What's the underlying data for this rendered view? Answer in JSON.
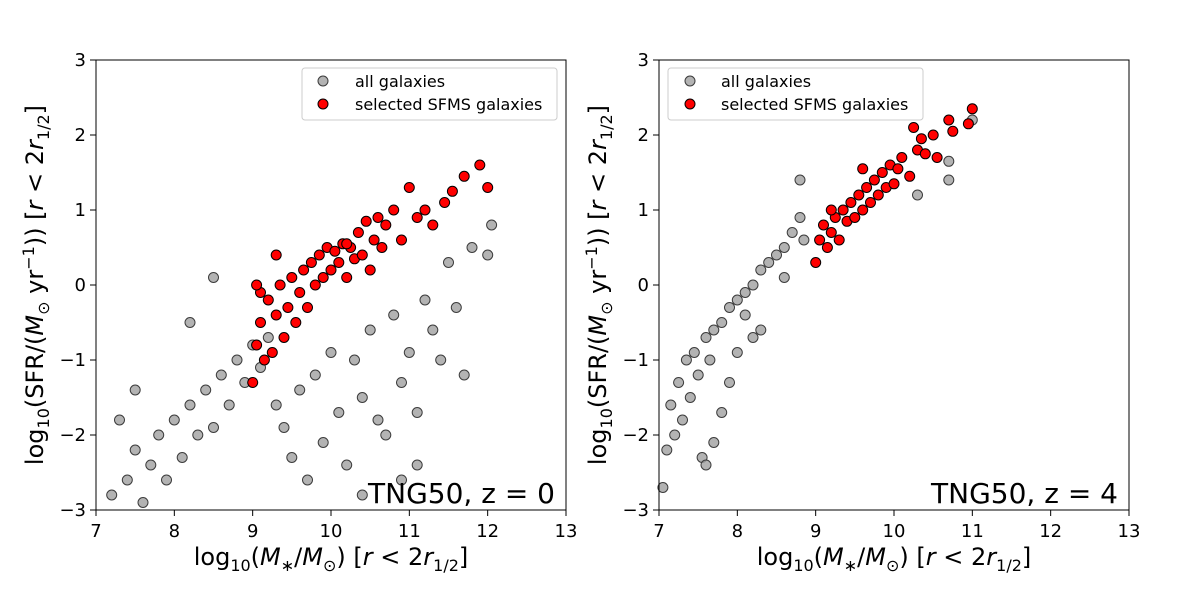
{
  "chart_data": [
    {
      "type": "scatter",
      "panel": "left",
      "xlabel": "log10(M*/M⊙) [r < 2r1/2]",
      "ylabel": "log10(SFR/(M⊙ yr−1)) [r < 2r1/2]",
      "xlim": [
        7,
        13
      ],
      "ylim": [
        -3,
        3
      ],
      "xticks": [
        "7",
        "8",
        "9",
        "10",
        "11",
        "12",
        "13"
      ],
      "yticks": [
        "−3",
        "−2",
        "−1",
        "0",
        "1",
        "2",
        "3"
      ],
      "annotation": "TNG50, z = 0",
      "legend": {
        "position": "top-right",
        "entries": [
          "all galaxies",
          "selected SFMS galaxies"
        ]
      },
      "series": [
        {
          "name": "all galaxies",
          "color": "#a0a0a0",
          "edge": "#3c3c3c",
          "points": [
            [
              7.2,
              -2.8
            ],
            [
              7.4,
              -2.6
            ],
            [
              7.5,
              -2.2
            ],
            [
              7.6,
              -2.9
            ],
            [
              7.7,
              -2.4
            ],
            [
              7.8,
              -2.0
            ],
            [
              7.9,
              -2.6
            ],
            [
              8.0,
              -1.8
            ],
            [
              8.1,
              -2.3
            ],
            [
              8.2,
              -1.6
            ],
            [
              8.3,
              -2.0
            ],
            [
              8.4,
              -1.4
            ],
            [
              8.5,
              -1.9
            ],
            [
              8.6,
              -1.2
            ],
            [
              8.7,
              -1.6
            ],
            [
              8.8,
              -1.0
            ],
            [
              8.9,
              -1.3
            ],
            [
              9.0,
              -0.8
            ],
            [
              9.1,
              -1.1
            ],
            [
              9.2,
              -0.7
            ],
            [
              9.3,
              -1.6
            ],
            [
              9.4,
              -1.9
            ],
            [
              9.5,
              -2.3
            ],
            [
              9.6,
              -1.4
            ],
            [
              9.7,
              -2.6
            ],
            [
              9.8,
              -1.2
            ],
            [
              9.9,
              -2.1
            ],
            [
              10.0,
              -0.9
            ],
            [
              10.1,
              -1.7
            ],
            [
              10.2,
              -2.4
            ],
            [
              10.3,
              -1.0
            ],
            [
              10.4,
              -1.5
            ],
            [
              10.5,
              -0.6
            ],
            [
              10.6,
              -1.8
            ],
            [
              10.7,
              -2.0
            ],
            [
              10.8,
              -0.4
            ],
            [
              10.9,
              -1.3
            ],
            [
              11.0,
              -0.9
            ],
            [
              11.1,
              -1.7
            ],
            [
              11.2,
              -0.2
            ],
            [
              11.3,
              -0.6
            ],
            [
              11.4,
              -1.0
            ],
            [
              11.5,
              0.3
            ],
            [
              11.6,
              -0.3
            ],
            [
              11.8,
              0.5
            ],
            [
              12.0,
              0.4
            ],
            [
              12.05,
              0.8
            ],
            [
              8.5,
              0.1
            ],
            [
              8.2,
              -0.5
            ],
            [
              7.5,
              -1.4
            ],
            [
              7.3,
              -1.8
            ],
            [
              11.7,
              -1.2
            ],
            [
              11.1,
              -2.4
            ],
            [
              10.9,
              -2.6
            ],
            [
              10.4,
              -2.8
            ]
          ]
        },
        {
          "name": "selected SFMS galaxies",
          "color": "#ff0000",
          "edge": "#000000",
          "points": [
            [
              9.0,
              -1.3
            ],
            [
              9.05,
              -0.8
            ],
            [
              9.1,
              -0.5
            ],
            [
              9.15,
              -1.0
            ],
            [
              9.2,
              -0.2
            ],
            [
              9.25,
              -0.9
            ],
            [
              9.3,
              -0.4
            ],
            [
              9.35,
              0.0
            ],
            [
              9.4,
              -0.7
            ],
            [
              9.45,
              -0.3
            ],
            [
              9.5,
              0.1
            ],
            [
              9.55,
              -0.5
            ],
            [
              9.6,
              -0.1
            ],
            [
              9.65,
              0.2
            ],
            [
              9.7,
              -0.3
            ],
            [
              9.75,
              0.3
            ],
            [
              9.8,
              0.0
            ],
            [
              9.85,
              0.4
            ],
            [
              9.9,
              0.1
            ],
            [
              9.95,
              0.5
            ],
            [
              10.0,
              0.2
            ],
            [
              10.05,
              0.45
            ],
            [
              10.1,
              0.3
            ],
            [
              10.15,
              0.55
            ],
            [
              10.2,
              0.1
            ],
            [
              10.25,
              0.5
            ],
            [
              10.3,
              0.35
            ],
            [
              10.35,
              0.7
            ],
            [
              10.4,
              0.4
            ],
            [
              10.45,
              0.85
            ],
            [
              10.5,
              0.2
            ],
            [
              10.55,
              0.6
            ],
            [
              10.6,
              0.9
            ],
            [
              10.65,
              0.5
            ],
            [
              10.7,
              0.8
            ],
            [
              10.8,
              1.0
            ],
            [
              10.9,
              0.6
            ],
            [
              11.0,
              1.3
            ],
            [
              11.1,
              0.9
            ],
            [
              11.2,
              1.0
            ],
            [
              11.3,
              0.8
            ],
            [
              11.45,
              1.1
            ],
            [
              11.55,
              1.25
            ],
            [
              11.7,
              1.45
            ],
            [
              11.9,
              1.6
            ],
            [
              12.0,
              1.3
            ],
            [
              9.3,
              0.4
            ],
            [
              10.2,
              0.55
            ],
            [
              9.1,
              -0.1
            ],
            [
              9.05,
              0.0
            ]
          ]
        }
      ]
    },
    {
      "type": "scatter",
      "panel": "right",
      "xlabel": "log10(M*/M⊙) [r < 2r1/2]",
      "ylabel": "log10(SFR/(M⊙ yr−1)) [r < 2r1/2]",
      "xlim": [
        7,
        13
      ],
      "ylim": [
        -3,
        3
      ],
      "xticks": [
        "7",
        "8",
        "9",
        "10",
        "11",
        "12",
        "13"
      ],
      "yticks": [
        "−3",
        "−2",
        "−1",
        "0",
        "1",
        "2",
        "3"
      ],
      "annotation": "TNG50, z = 4",
      "legend": {
        "position": "top-left",
        "entries": [
          "all galaxies",
          "selected SFMS galaxies"
        ]
      },
      "series": [
        {
          "name": "all galaxies",
          "color": "#a0a0a0",
          "edge": "#3c3c3c",
          "points": [
            [
              7.05,
              -2.7
            ],
            [
              7.1,
              -2.2
            ],
            [
              7.15,
              -1.6
            ],
            [
              7.2,
              -2.0
            ],
            [
              7.25,
              -1.3
            ],
            [
              7.3,
              -1.8
            ],
            [
              7.35,
              -1.0
            ],
            [
              7.4,
              -1.5
            ],
            [
              7.45,
              -0.9
            ],
            [
              7.5,
              -1.2
            ],
            [
              7.55,
              -2.3
            ],
            [
              7.6,
              -0.7
            ],
            [
              7.65,
              -1.0
            ],
            [
              7.7,
              -0.6
            ],
            [
              7.8,
              -0.5
            ],
            [
              7.9,
              -0.3
            ],
            [
              8.0,
              -0.2
            ],
            [
              8.1,
              -0.1
            ],
            [
              8.2,
              0.0
            ],
            [
              8.3,
              0.2
            ],
            [
              8.4,
              0.3
            ],
            [
              8.5,
              0.4
            ],
            [
              8.6,
              0.5
            ],
            [
              8.7,
              0.7
            ],
            [
              8.8,
              0.9
            ],
            [
              8.85,
              0.6
            ],
            [
              8.8,
              1.4
            ],
            [
              8.3,
              -0.6
            ],
            [
              8.0,
              -0.9
            ],
            [
              7.8,
              -1.7
            ],
            [
              7.7,
              -2.1
            ],
            [
              7.6,
              -2.4
            ],
            [
              7.9,
              -1.3
            ],
            [
              8.1,
              -0.4
            ],
            [
              8.2,
              -0.7
            ],
            [
              8.6,
              0.1
            ],
            [
              10.7,
              1.4
            ],
            [
              10.7,
              1.65
            ],
            [
              11.0,
              2.2
            ],
            [
              10.3,
              1.2
            ]
          ]
        },
        {
          "name": "selected SFMS galaxies",
          "color": "#ff0000",
          "edge": "#000000",
          "points": [
            [
              9.0,
              0.3
            ],
            [
              9.05,
              0.6
            ],
            [
              9.1,
              0.8
            ],
            [
              9.15,
              0.5
            ],
            [
              9.2,
              0.7
            ],
            [
              9.25,
              0.9
            ],
            [
              9.3,
              0.6
            ],
            [
              9.35,
              1.0
            ],
            [
              9.4,
              0.85
            ],
            [
              9.45,
              1.1
            ],
            [
              9.5,
              0.9
            ],
            [
              9.55,
              1.2
            ],
            [
              9.6,
              1.0
            ],
            [
              9.65,
              1.3
            ],
            [
              9.7,
              1.1
            ],
            [
              9.75,
              1.4
            ],
            [
              9.8,
              1.2
            ],
            [
              9.85,
              1.5
            ],
            [
              9.9,
              1.3
            ],
            [
              9.95,
              1.6
            ],
            [
              10.0,
              1.35
            ],
            [
              10.05,
              1.55
            ],
            [
              10.1,
              1.7
            ],
            [
              10.2,
              1.45
            ],
            [
              10.3,
              1.8
            ],
            [
              10.35,
              1.95
            ],
            [
              10.4,
              1.75
            ],
            [
              10.5,
              2.0
            ],
            [
              10.55,
              1.7
            ],
            [
              10.7,
              2.2
            ],
            [
              10.75,
              2.05
            ],
            [
              10.95,
              2.15
            ],
            [
              11.0,
              2.35
            ],
            [
              10.25,
              2.1
            ],
            [
              9.6,
              1.55
            ],
            [
              9.2,
              1.0
            ]
          ]
        }
      ]
    }
  ]
}
